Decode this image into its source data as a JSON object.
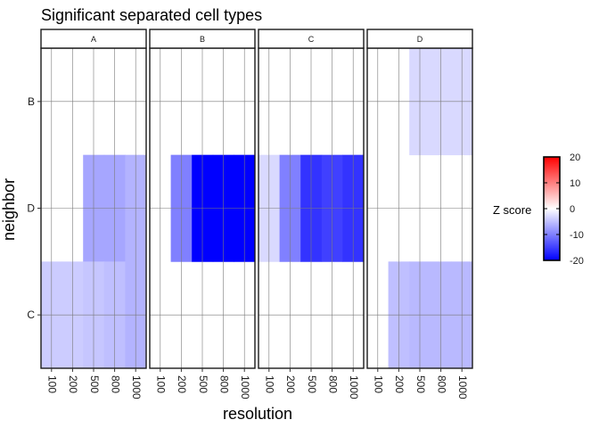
{
  "chart_data": {
    "type": "heatmap",
    "title": "Significant separated cell types",
    "xlabel": "resolution",
    "ylabel": "neighbor",
    "facets": [
      "A",
      "B",
      "C",
      "D"
    ],
    "x_categories": [
      "100",
      "200",
      "500",
      "800",
      "1000"
    ],
    "y_categories": [
      "B",
      "D",
      "C"
    ],
    "cells": [
      {
        "facet": "A",
        "neighbor": "D",
        "resolution": "500",
        "z": -7
      },
      {
        "facet": "A",
        "neighbor": "D",
        "resolution": "800",
        "z": -7
      },
      {
        "facet": "A",
        "neighbor": "D",
        "resolution": "1000",
        "z": -6
      },
      {
        "facet": "A",
        "neighbor": "C",
        "resolution": "100",
        "z": -4
      },
      {
        "facet": "A",
        "neighbor": "C",
        "resolution": "200",
        "z": -4
      },
      {
        "facet": "A",
        "neighbor": "C",
        "resolution": "500",
        "z": -4.5
      },
      {
        "facet": "A",
        "neighbor": "C",
        "resolution": "800",
        "z": -5
      },
      {
        "facet": "A",
        "neighbor": "C",
        "resolution": "1000",
        "z": -6
      },
      {
        "facet": "B",
        "neighbor": "D",
        "resolution": "200",
        "z": -10
      },
      {
        "facet": "B",
        "neighbor": "D",
        "resolution": "500",
        "z": -20
      },
      {
        "facet": "B",
        "neighbor": "D",
        "resolution": "800",
        "z": -20
      },
      {
        "facet": "B",
        "neighbor": "D",
        "resolution": "1000",
        "z": -20
      },
      {
        "facet": "C",
        "neighbor": "D",
        "resolution": "100",
        "z": -3
      },
      {
        "facet": "C",
        "neighbor": "D",
        "resolution": "200",
        "z": -10
      },
      {
        "facet": "C",
        "neighbor": "D",
        "resolution": "500",
        "z": -16
      },
      {
        "facet": "C",
        "neighbor": "D",
        "resolution": "800",
        "z": -15
      },
      {
        "facet": "C",
        "neighbor": "D",
        "resolution": "1000",
        "z": -16
      },
      {
        "facet": "D",
        "neighbor": "B",
        "resolution": "500",
        "z": -3
      },
      {
        "facet": "D",
        "neighbor": "B",
        "resolution": "800",
        "z": -3
      },
      {
        "facet": "D",
        "neighbor": "B",
        "resolution": "1000",
        "z": -3
      },
      {
        "facet": "D",
        "neighbor": "C",
        "resolution": "200",
        "z": -5
      },
      {
        "facet": "D",
        "neighbor": "C",
        "resolution": "500",
        "z": -5.5
      },
      {
        "facet": "D",
        "neighbor": "C",
        "resolution": "800",
        "z": -5.5
      },
      {
        "facet": "D",
        "neighbor": "C",
        "resolution": "1000",
        "z": -5.5
      }
    ],
    "legend": {
      "title": "Z score",
      "min": -20,
      "max": 20,
      "ticks": [
        20,
        10,
        0,
        -10,
        -20
      ],
      "low_color": "#0000ff",
      "mid_color": "#ffffff",
      "high_color": "#ff0000"
    },
    "grid": true
  }
}
